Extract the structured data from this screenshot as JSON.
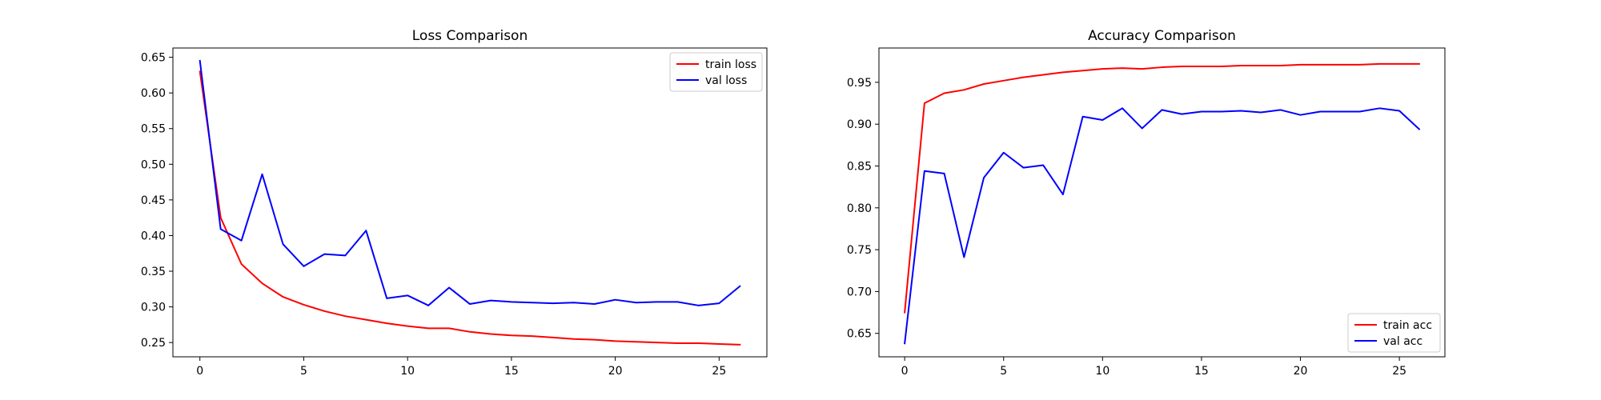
{
  "chart_data": [
    {
      "type": "line",
      "title": "Loss Comparison",
      "xlabel": "",
      "ylabel": "",
      "xlim": [
        -1.3,
        27.3
      ],
      "ylim": [
        0.23,
        0.663
      ],
      "xticks": [
        0,
        5,
        10,
        15,
        20,
        25
      ],
      "yticks": [
        0.25,
        0.3,
        0.35,
        0.4,
        0.45,
        0.5,
        0.55,
        0.6,
        0.65
      ],
      "x": [
        0,
        1,
        2,
        3,
        4,
        5,
        6,
        7,
        8,
        9,
        10,
        11,
        12,
        13,
        14,
        15,
        16,
        17,
        18,
        19,
        20,
        21,
        22,
        23,
        24,
        25,
        26
      ],
      "legend_position": "top-right",
      "grid": false,
      "series": [
        {
          "name": "train loss",
          "color": "#ff0000",
          "values": [
            0.63,
            0.425,
            0.36,
            0.333,
            0.314,
            0.303,
            0.294,
            0.287,
            0.282,
            0.277,
            0.273,
            0.27,
            0.27,
            0.265,
            0.262,
            0.26,
            0.259,
            0.257,
            0.255,
            0.254,
            0.252,
            0.251,
            0.25,
            0.249,
            0.249,
            0.248,
            0.247
          ]
        },
        {
          "name": "val loss",
          "color": "#0000ff",
          "values": [
            0.645,
            0.409,
            0.393,
            0.486,
            0.388,
            0.357,
            0.374,
            0.372,
            0.407,
            0.312,
            0.316,
            0.302,
            0.327,
            0.304,
            0.309,
            0.307,
            0.306,
            0.305,
            0.306,
            0.304,
            0.31,
            0.306,
            0.307,
            0.307,
            0.302,
            0.305,
            0.329
          ]
        }
      ]
    },
    {
      "type": "line",
      "title": "Accuracy Comparison",
      "xlabel": "",
      "ylabel": "",
      "xlim": [
        -1.3,
        27.3
      ],
      "ylim": [
        0.622,
        0.991
      ],
      "xticks": [
        0,
        5,
        10,
        15,
        20,
        25
      ],
      "yticks": [
        0.65,
        0.7,
        0.75,
        0.8,
        0.85,
        0.9,
        0.95
      ],
      "x": [
        0,
        1,
        2,
        3,
        4,
        5,
        6,
        7,
        8,
        9,
        10,
        11,
        12,
        13,
        14,
        15,
        16,
        17,
        18,
        19,
        20,
        21,
        22,
        23,
        24,
        25,
        26
      ],
      "legend_position": "bottom-right",
      "grid": false,
      "series": [
        {
          "name": "train acc",
          "color": "#ff0000",
          "values": [
            0.675,
            0.925,
            0.937,
            0.941,
            0.948,
            0.952,
            0.956,
            0.959,
            0.962,
            0.964,
            0.966,
            0.967,
            0.966,
            0.968,
            0.969,
            0.969,
            0.969,
            0.97,
            0.97,
            0.97,
            0.971,
            0.971,
            0.971,
            0.971,
            0.972,
            0.972,
            0.972
          ]
        },
        {
          "name": "val acc",
          "color": "#0000ff",
          "values": [
            0.638,
            0.844,
            0.841,
            0.741,
            0.836,
            0.866,
            0.848,
            0.851,
            0.816,
            0.909,
            0.905,
            0.919,
            0.895,
            0.917,
            0.912,
            0.915,
            0.915,
            0.916,
            0.914,
            0.917,
            0.911,
            0.915,
            0.915,
            0.915,
            0.919,
            0.916,
            0.894
          ]
        }
      ]
    }
  ]
}
